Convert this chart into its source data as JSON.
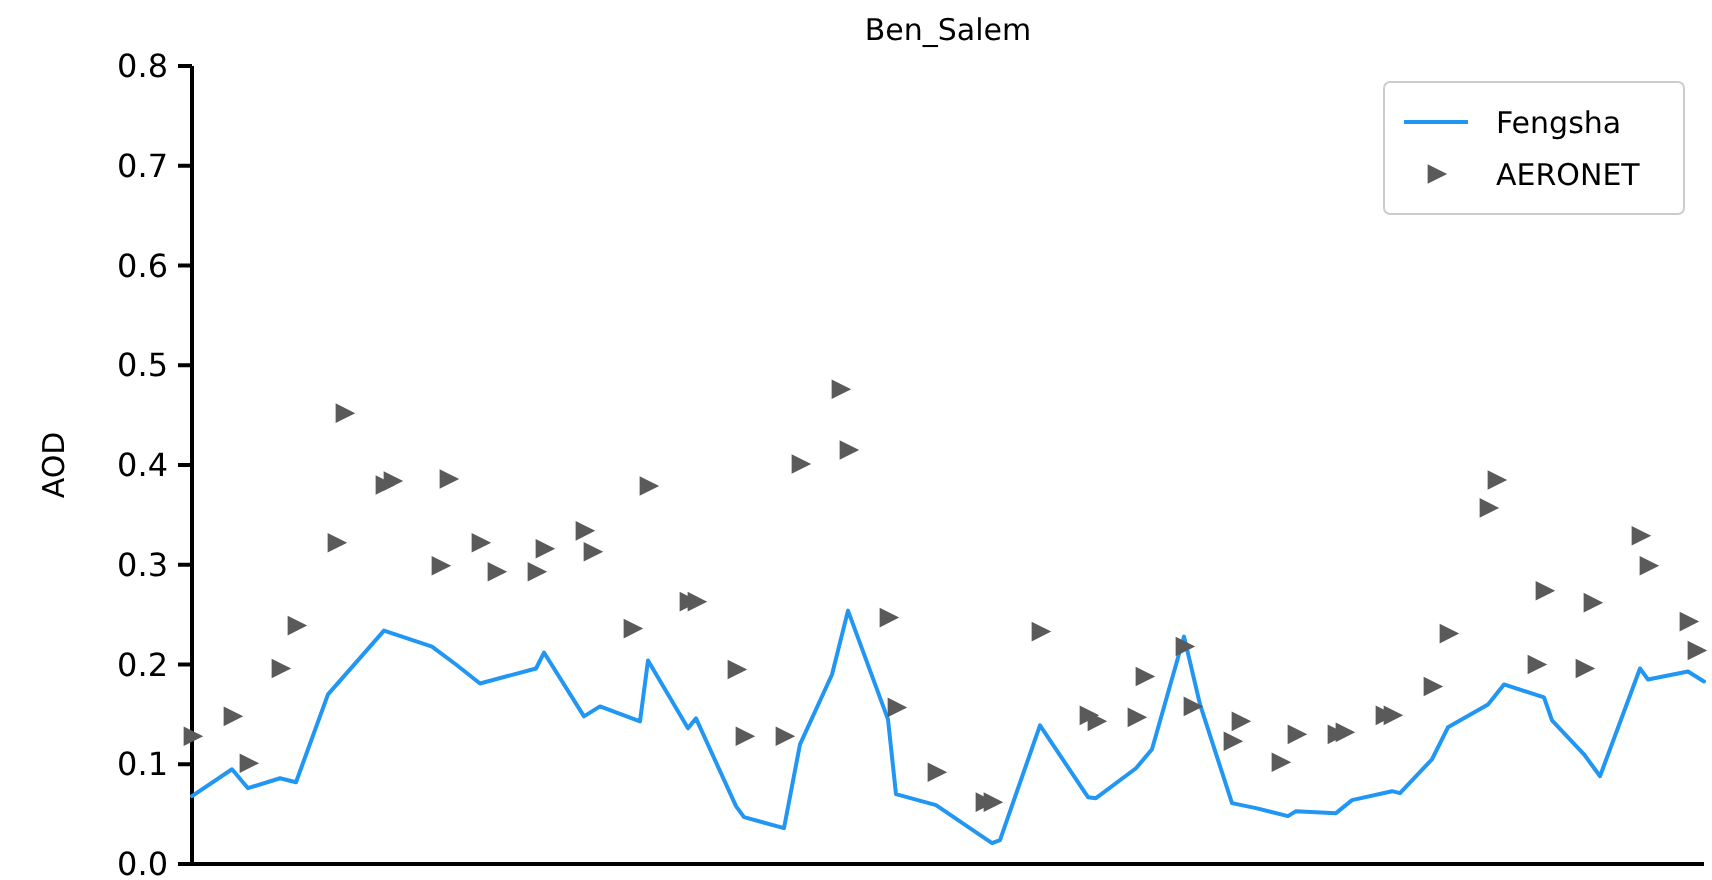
{
  "chart_data": {
    "type": "line",
    "title": "Ben_Salem",
    "ylabel": "AOD",
    "categories": [
      null,
      null,
      null,
      null,
      null,
      null,
      null,
      null,
      null,
      null,
      null,
      null,
      null,
      null,
      null,
      null,
      null,
      null,
      null,
      null,
      null,
      null,
      null,
      null,
      null,
      null,
      null,
      null,
      null,
      null,
      null,
      null,
      null,
      null,
      null,
      null,
      null,
      null,
      null,
      null,
      null,
      null,
      null,
      null,
      null,
      null,
      null,
      null,
      null,
      null,
      null,
      null,
      null,
      null,
      null,
      null,
      null,
      null,
      null,
      null,
      null,
      null,
      null,
      null,
      null,
      null,
      null,
      null,
      null,
      null,
      null,
      null,
      null,
      null,
      null,
      null,
      null,
      null,
      null,
      null,
      null,
      null,
      null,
      null,
      null,
      null,
      null,
      null,
      null,
      null,
      null,
      null,
      null,
      null,
      null,
      null,
      null,
      null,
      null,
      null,
      null,
      null,
      null,
      null,
      null,
      null,
      null,
      null,
      null,
      null,
      null,
      null,
      null,
      null,
      null,
      null,
      null,
      null,
      null,
      null,
      null,
      null,
      null,
      null,
      null,
      null,
      null,
      null,
      null,
      null,
      null,
      null,
      null,
      null,
      null,
      null,
      null,
      null,
      null,
      null,
      null,
      null,
      null,
      null,
      null,
      null,
      null,
      null,
      null,
      null,
      null,
      null,
      null,
      null,
      null,
      null,
      null,
      null,
      null,
      null,
      null,
      null,
      null,
      null,
      null,
      null,
      null,
      null,
      null,
      null,
      null,
      null,
      null,
      null,
      null,
      null,
      null,
      null,
      null,
      null,
      null,
      null,
      null,
      null,
      null,
      null,
      null,
      null,
      null,
      null
    ],
    "ylim": [
      0,
      0.8
    ],
    "yticks": [
      {
        "value": 0,
        "label": "0.0"
      },
      {
        "value": 0.1,
        "label": "0.1"
      },
      {
        "value": 0.2,
        "label": "0.2"
      },
      {
        "value": 0.3,
        "label": "0.3"
      },
      {
        "value": 0.4,
        "label": "0.4"
      },
      {
        "value": 0.5,
        "label": "0.5"
      },
      {
        "value": 0.6,
        "label": "0.6"
      },
      {
        "value": 0.7,
        "label": "0.7"
      },
      {
        "value": 0.8,
        "label": "0.8"
      }
    ],
    "tick_labels": "y",
    "grid": false,
    "legend": "top right",
    "series": [
      {
        "name": "Fengsha",
        "type": "line",
        "color": "#2196f3",
        "marker": "none",
        "line_style": "solid",
        "values": [
          0.068,
          null,
          null,
          null,
          null,
          0.095,
          null,
          0.076,
          null,
          null,
          null,
          0.086,
          null,
          0.082,
          null,
          null,
          null,
          0.17,
          null,
          null,
          null,
          null,
          null,
          null,
          0.234,
          null,
          null,
          null,
          null,
          null,
          0.218,
          null,
          null,
          0.2,
          null,
          null,
          0.181,
          null,
          null,
          null,
          null,
          null,
          null,
          0.196,
          0.212,
          null,
          null,
          null,
          null,
          0.148,
          null,
          0.158,
          null,
          null,
          null,
          null,
          0.143,
          0.204,
          null,
          null,
          null,
          null,
          0.136,
          0.146,
          null,
          null,
          null,
          null,
          0.058,
          0.047,
          null,
          null,
          null,
          null,
          0.036,
          null,
          0.12,
          null,
          null,
          null,
          0.19,
          null,
          0.254,
          null,
          null,
          null,
          null,
          0.145,
          0.07,
          null,
          null,
          null,
          null,
          0.059,
          null,
          null,
          null,
          null,
          null,
          null,
          0.021,
          0.024,
          null,
          null,
          null,
          null,
          0.139,
          null,
          null,
          null,
          null,
          null,
          0.067,
          0.066,
          null,
          null,
          null,
          null,
          0.096,
          null,
          0.115,
          null,
          null,
          null,
          0.228,
          null,
          0.16,
          null,
          null,
          null,
          0.061,
          null,
          null,
          0.056,
          null,
          null,
          null,
          0.048,
          0.053,
          null,
          null,
          null,
          null,
          0.051,
          null,
          0.064,
          null,
          null,
          null,
          null,
          0.073,
          0.071,
          null,
          null,
          null,
          0.105,
          null,
          0.137,
          null,
          null,
          null,
          null,
          0.16,
          null,
          0.18,
          null,
          null,
          null,
          null,
          0.167,
          0.144,
          null,
          null,
          null,
          0.11,
          null,
          0.088,
          null,
          null,
          null,
          null,
          0.196,
          0.185,
          null,
          null,
          null,
          null,
          0.193,
          null,
          0.183
        ]
      },
      {
        "name": "AERONET",
        "type": "scatter",
        "color": "#5a5a5a",
        "marker": "triangle",
        "values": [
          0.128,
          null,
          null,
          null,
          null,
          0.148,
          null,
          0.101,
          null,
          null,
          null,
          0.196,
          null,
          0.239,
          null,
          null,
          null,
          null,
          0.322,
          0.452,
          null,
          null,
          null,
          null,
          0.38,
          0.384,
          null,
          null,
          null,
          null,
          null,
          0.299,
          0.386,
          null,
          null,
          null,
          0.322,
          null,
          0.293,
          null,
          null,
          null,
          null,
          0.293,
          0.316,
          null,
          null,
          null,
          null,
          0.334,
          0.313,
          null,
          null,
          null,
          null,
          0.236,
          null,
          0.379,
          null,
          null,
          null,
          null,
          0.263,
          0.263,
          null,
          null,
          null,
          null,
          0.195,
          0.128,
          null,
          null,
          null,
          null,
          0.128,
          null,
          0.401,
          null,
          null,
          null,
          null,
          0.476,
          0.415,
          null,
          null,
          null,
          null,
          0.247,
          0.157,
          null,
          null,
          null,
          null,
          0.092,
          null,
          null,
          null,
          null,
          null,
          0.062,
          0.062,
          null,
          null,
          null,
          null,
          null,
          0.233,
          null,
          null,
          null,
          null,
          null,
          0.149,
          0.143,
          null,
          null,
          null,
          null,
          0.147,
          0.188,
          null,
          null,
          null,
          null,
          0.218,
          0.158,
          null,
          null,
          null,
          null,
          0.123,
          0.143,
          null,
          null,
          null,
          null,
          0.102,
          null,
          0.13,
          null,
          null,
          null,
          null,
          0.13,
          0.132,
          null,
          null,
          null,
          null,
          0.149,
          0.149,
          null,
          null,
          null,
          null,
          0.178,
          null,
          0.231,
          null,
          null,
          null,
          null,
          0.357,
          0.385,
          null,
          null,
          null,
          null,
          0.2,
          0.274,
          null,
          null,
          null,
          null,
          0.196,
          0.262,
          null,
          null,
          null,
          null,
          null,
          0.329,
          0.299,
          null,
          null,
          null,
          null,
          0.243,
          0.214,
          null
        ]
      }
    ]
  }
}
